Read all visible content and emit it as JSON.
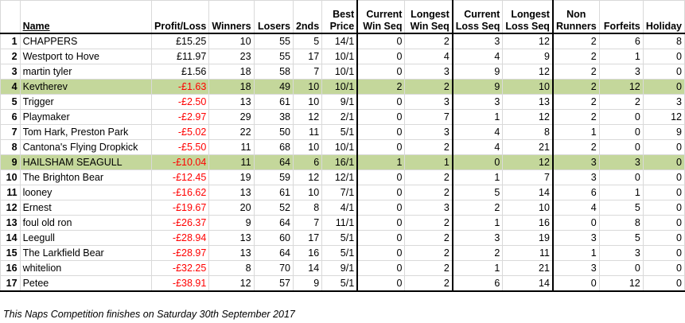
{
  "headers": {
    "rank": "",
    "name": "Name",
    "profit": "Profit/Loss",
    "winners": "Winners",
    "losers": "Losers",
    "seconds": "2nds",
    "best_price_1": "Best",
    "best_price_2": "Price",
    "cur_win_1": "Current",
    "cur_win_2": "Win Seq",
    "long_win_1": "Longest",
    "long_win_2": "Win Seq",
    "cur_loss_1": "Current",
    "cur_loss_2": "Loss Seq",
    "long_loss_1": "Longest",
    "long_loss_2": "Loss Seq",
    "non_runners_1": "Non",
    "non_runners_2": "Runners",
    "forfeits": "Forfeits",
    "holiday": "Holiday"
  },
  "rows": [
    {
      "rank": "1",
      "name": "CHAPPERS",
      "profit": "£15.25",
      "winners": "10",
      "losers": "55",
      "seconds": "5",
      "best": "14/1",
      "cur_win": "0",
      "long_win": "2",
      "cur_loss": "3",
      "long_loss": "12",
      "non_runners": "2",
      "forfeits": "6",
      "holiday": "8"
    },
    {
      "rank": "2",
      "name": "Westport to Hove",
      "profit": "£11.97",
      "winners": "23",
      "losers": "55",
      "seconds": "17",
      "best": "10/1",
      "cur_win": "0",
      "long_win": "4",
      "cur_loss": "4",
      "long_loss": "9",
      "non_runners": "2",
      "forfeits": "1",
      "holiday": "0"
    },
    {
      "rank": "3",
      "name": "martin tyler",
      "profit": "£1.56",
      "winners": "18",
      "losers": "58",
      "seconds": "7",
      "best": "10/1",
      "cur_win": "0",
      "long_win": "3",
      "cur_loss": "9",
      "long_loss": "12",
      "non_runners": "2",
      "forfeits": "3",
      "holiday": "0"
    },
    {
      "rank": "4",
      "name": "Kevtherev",
      "profit": "-£1.63",
      "winners": "18",
      "losers": "49",
      "seconds": "10",
      "best": "10/1",
      "cur_win": "2",
      "long_win": "2",
      "cur_loss": "9",
      "long_loss": "10",
      "non_runners": "2",
      "forfeits": "12",
      "holiday": "0"
    },
    {
      "rank": "5",
      "name": "Trigger",
      "profit": "-£2.50",
      "winners": "13",
      "losers": "61",
      "seconds": "10",
      "best": "9/1",
      "cur_win": "0",
      "long_win": "3",
      "cur_loss": "3",
      "long_loss": "13",
      "non_runners": "2",
      "forfeits": "2",
      "holiday": "3"
    },
    {
      "rank": "6",
      "name": "Playmaker",
      "profit": "-£2.97",
      "winners": "29",
      "losers": "38",
      "seconds": "12",
      "best": "2/1",
      "cur_win": "0",
      "long_win": "7",
      "cur_loss": "1",
      "long_loss": "12",
      "non_runners": "2",
      "forfeits": "0",
      "holiday": "12"
    },
    {
      "rank": "7",
      "name": "Tom Hark, Preston Park",
      "profit": "-£5.02",
      "winners": "22",
      "losers": "50",
      "seconds": "11",
      "best": "5/1",
      "cur_win": "0",
      "long_win": "3",
      "cur_loss": "4",
      "long_loss": "8",
      "non_runners": "1",
      "forfeits": "0",
      "holiday": "9"
    },
    {
      "rank": "8",
      "name": "Cantona's Flying Dropkick",
      "profit": "-£5.50",
      "winners": "11",
      "losers": "68",
      "seconds": "10",
      "best": "10/1",
      "cur_win": "0",
      "long_win": "2",
      "cur_loss": "4",
      "long_loss": "21",
      "non_runners": "2",
      "forfeits": "0",
      "holiday": "0"
    },
    {
      "rank": "9",
      "name": "HAILSHAM SEAGULL",
      "profit": "-£10.04",
      "winners": "11",
      "losers": "64",
      "seconds": "6",
      "best": "16/1",
      "cur_win": "1",
      "long_win": "1",
      "cur_loss": "0",
      "long_loss": "12",
      "non_runners": "3",
      "forfeits": "3",
      "holiday": "0"
    },
    {
      "rank": "10",
      "name": "The Brighton Bear",
      "profit": "-£12.45",
      "winners": "19",
      "losers": "59",
      "seconds": "12",
      "best": "12/1",
      "cur_win": "0",
      "long_win": "2",
      "cur_loss": "1",
      "long_loss": "7",
      "non_runners": "3",
      "forfeits": "0",
      "holiday": "0"
    },
    {
      "rank": "11",
      "name": "looney",
      "profit": "-£16.62",
      "winners": "13",
      "losers": "61",
      "seconds": "10",
      "best": "7/1",
      "cur_win": "0",
      "long_win": "2",
      "cur_loss": "5",
      "long_loss": "14",
      "non_runners": "6",
      "forfeits": "1",
      "holiday": "0"
    },
    {
      "rank": "12",
      "name": "Ernest",
      "profit": "-£19.67",
      "winners": "20",
      "losers": "52",
      "seconds": "8",
      "best": "4/1",
      "cur_win": "0",
      "long_win": "3",
      "cur_loss": "2",
      "long_loss": "10",
      "non_runners": "4",
      "forfeits": "5",
      "holiday": "0"
    },
    {
      "rank": "13",
      "name": "foul old ron",
      "profit": "-£26.37",
      "winners": "9",
      "losers": "64",
      "seconds": "7",
      "best": "11/1",
      "cur_win": "0",
      "long_win": "2",
      "cur_loss": "1",
      "long_loss": "16",
      "non_runners": "0",
      "forfeits": "8",
      "holiday": "0"
    },
    {
      "rank": "14",
      "name": "Leegull",
      "profit": "-£28.94",
      "winners": "13",
      "losers": "60",
      "seconds": "17",
      "best": "5/1",
      "cur_win": "0",
      "long_win": "2",
      "cur_loss": "3",
      "long_loss": "19",
      "non_runners": "3",
      "forfeits": "5",
      "holiday": "0"
    },
    {
      "rank": "15",
      "name": "The Larkfield Bear",
      "profit": "-£28.97",
      "winners": "13",
      "losers": "64",
      "seconds": "16",
      "best": "5/1",
      "cur_win": "0",
      "long_win": "2",
      "cur_loss": "2",
      "long_loss": "11",
      "non_runners": "1",
      "forfeits": "3",
      "holiday": "0"
    },
    {
      "rank": "16",
      "name": "whitelion",
      "profit": "-£32.25",
      "winners": "8",
      "losers": "70",
      "seconds": "14",
      "best": "9/1",
      "cur_win": "0",
      "long_win": "2",
      "cur_loss": "1",
      "long_loss": "21",
      "non_runners": "3",
      "forfeits": "0",
      "holiday": "0"
    },
    {
      "rank": "17",
      "name": "Petee",
      "profit": "-£38.91",
      "winners": "12",
      "losers": "57",
      "seconds": "9",
      "best": "5/1",
      "cur_win": "0",
      "long_win": "2",
      "cur_loss": "6",
      "long_loss": "14",
      "non_runners": "0",
      "forfeits": "12",
      "holiday": "0"
    }
  ],
  "highlight_color": "#c4d79b",
  "negative_color": "#ff0000",
  "footnote": "This Naps Competition finishes on Saturday 30th September 2017"
}
